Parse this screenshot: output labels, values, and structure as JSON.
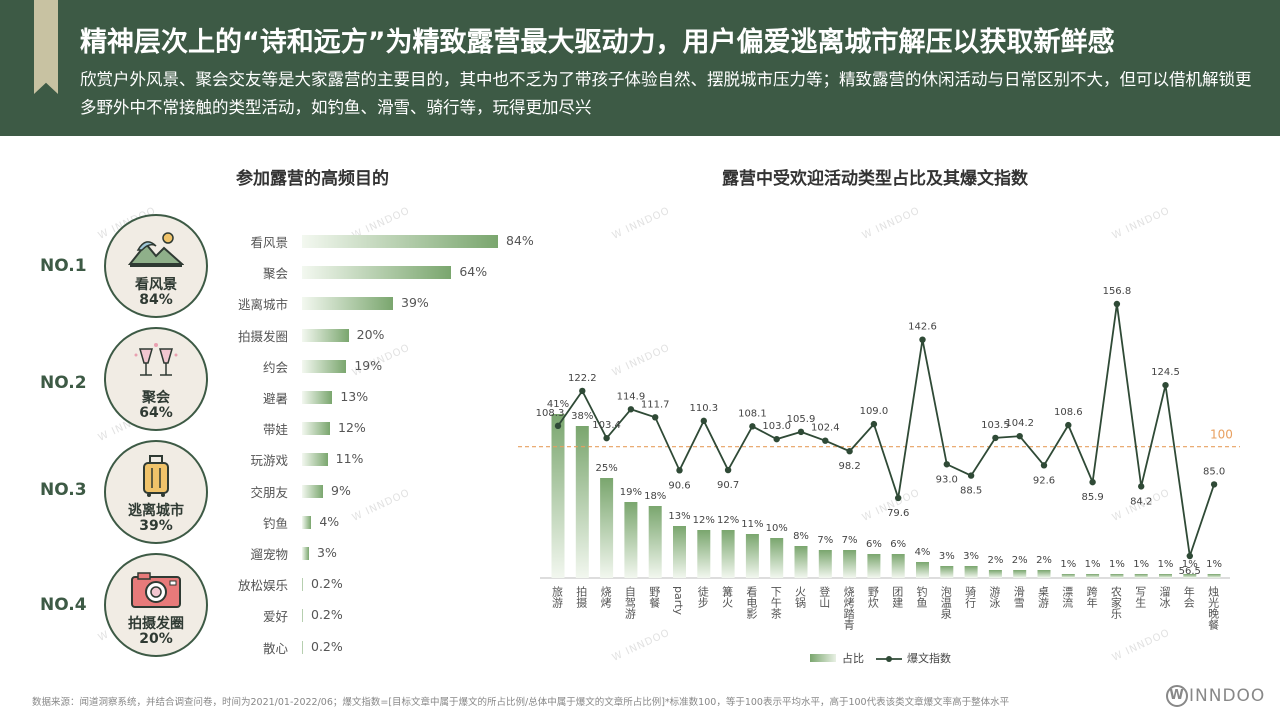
{
  "header": {
    "title": "精神层次上的“诗和远方”为精致露营最大驱动力，用户偏爱逃离城市解压以获取新鲜感",
    "subtitle": "欣赏户外风景、聚会交友等是大家露营的主要目的，其中也不乏为了带孩子体验自然、摆脱城市压力等；精致露营的休闲活动与日常区别不大，但可以借机解锁更多野外中不常接触的类型活动，如钓鱼、滑雪、骑行等，玩得更加尽兴"
  },
  "left_panel": {
    "title": "参加露营的高频目的",
    "ranks": [
      {
        "rank": "NO.1",
        "label": "看风景",
        "pct": "84%",
        "icon": "landscape-icon"
      },
      {
        "rank": "NO.2",
        "label": "聚会",
        "pct": "64%",
        "icon": "cheers-icon"
      },
      {
        "rank": "NO.3",
        "label": "逃离城市",
        "pct": "39%",
        "icon": "luggage-icon"
      },
      {
        "rank": "NO.4",
        "label": "拍摄发圈",
        "pct": "20%",
        "icon": "camera-icon"
      }
    ]
  },
  "chart_data": [
    {
      "type": "bar",
      "orientation": "horizontal",
      "title": "参加露营的高频目的",
      "categories": [
        "看风景",
        "聚会",
        "逃离城市",
        "拍摄发圈",
        "约会",
        "避暑",
        "带娃",
        "玩游戏",
        "交朋友",
        "钓鱼",
        "遛宠物",
        "放松娱乐",
        "爱好",
        "散心"
      ],
      "values": [
        84,
        64,
        39,
        20,
        19,
        13,
        12,
        11,
        9,
        4,
        3,
        0.2,
        0.2,
        0.2
      ],
      "labels": [
        "84%",
        "64%",
        "39%",
        "20%",
        "19%",
        "13%",
        "12%",
        "11%",
        "9%",
        "4%",
        "3%",
        "0.2%",
        "0.2%",
        "0.2%"
      ],
      "unit": "%"
    },
    {
      "type": "bar+line",
      "title": "露营中受欢迎活动类型占比及其爆文指数",
      "categories": [
        "旅游",
        "拍摄",
        "烧烤",
        "自驾游",
        "野餐",
        "party",
        "徒步",
        "篝火",
        "看电影",
        "下午茶",
        "火锅",
        "登山",
        "烧烤踏青",
        "野炊",
        "团建",
        "钓鱼",
        "泡温泉",
        "骑行",
        "游泳",
        "滑雪",
        "桌游",
        "漂流",
        "跨年",
        "农家乐",
        "写生",
        "溜冰",
        "年会",
        "烛光晚餐"
      ],
      "series": [
        {
          "name": "占比",
          "type": "bar",
          "values": [
            41,
            38,
            25,
            19,
            18,
            13,
            12,
            12,
            11,
            10,
            8,
            7,
            7,
            6,
            6,
            4,
            3,
            3,
            2,
            2,
            2,
            1,
            1,
            1,
            1,
            1,
            1,
            1
          ],
          "labels": [
            "41%",
            "38%",
            "25%",
            "19%",
            "18%",
            "13%",
            "12%",
            "12%",
            "11%",
            "10%",
            "8%",
            "7%",
            "7%",
            "6%",
            "6%",
            "4%",
            "3%",
            "3%",
            "2%",
            "2%",
            "2%",
            "1%",
            "1%",
            "1%",
            "1%",
            "1%",
            "1%",
            "1%"
          ]
        },
        {
          "name": "爆文指数",
          "type": "line",
          "values": [
            108.3,
            122.2,
            103.4,
            114.9,
            111.7,
            90.6,
            110.3,
            90.7,
            108.1,
            103.0,
            105.9,
            102.4,
            98.2,
            109.0,
            79.6,
            142.6,
            93.0,
            88.5,
            103.5,
            104.2,
            92.6,
            108.6,
            85.9,
            156.8,
            84.2,
            124.5,
            56.5,
            85.0
          ],
          "labels": [
            "108.3",
            "122.2",
            "103.4",
            "114.9",
            "111.7",
            "90.6",
            "110.3",
            "90.7",
            "108.1",
            "103.0",
            "105.9",
            "102.4",
            "98.2",
            "109.0",
            "79.6",
            "142.6",
            "93.0",
            "88.5",
            "103.5",
            "104.2",
            "92.6",
            "108.6",
            "85.9",
            "156.8",
            "84.2",
            "124.5",
            "56.5",
            "85.0"
          ]
        }
      ],
      "reference_line": {
        "value": 100,
        "label": "100",
        "color": "#e8a060"
      },
      "legend": {
        "items": [
          "占比",
          "爆文指数"
        ],
        "position": "bottom"
      }
    }
  ],
  "footer": {
    "source": "数据来源：闻道洞察系统，并结合调查问卷，时间为2021/01-2022/06；爆文指数=[目标文章中属于爆文的所占比例/总体中属于爆文的文章所占比例]*标准数100，等于100表示平均水平，高于100代表该类文章爆文率高于整体水平",
    "logo_letter": "W",
    "logo_text": "INNDOO"
  },
  "colors": {
    "header_bg": "#3d5a45",
    "accent": "#c8c2a2",
    "bar_dark": "#7aa66e",
    "line": "#2f4a36",
    "ref": "#e8a060"
  }
}
